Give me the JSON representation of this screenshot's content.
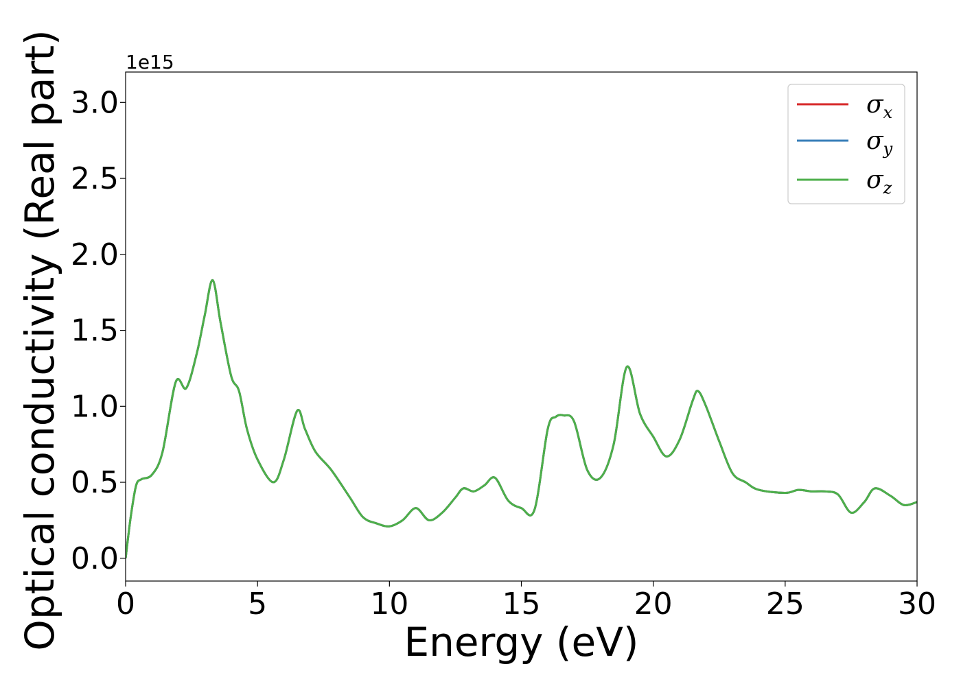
{
  "chart_data": {
    "type": "line",
    "xlabel": "Energy (eV)",
    "ylabel": "Optical conductivity (Real part)",
    "y_offset_label": "1e15",
    "y_scale": 1000000000000000.0,
    "xlim": [
      0,
      30
    ],
    "ylim": [
      -0.15,
      3.2
    ],
    "x_ticks": [
      0,
      5,
      10,
      15,
      20,
      25,
      30
    ],
    "y_ticks": [
      0.0,
      0.5,
      1.0,
      1.5,
      2.0,
      2.5,
      3.0
    ],
    "x_tick_labels": [
      "0",
      "5",
      "10",
      "15",
      "20",
      "25",
      "30"
    ],
    "y_tick_labels": [
      "0.0",
      "0.5",
      "1.0",
      "1.5",
      "2.0",
      "2.5",
      "3.0"
    ],
    "grid": false,
    "legend_position": "top-right",
    "x": [
      0.0,
      0.2,
      0.4,
      0.6,
      1.0,
      1.4,
      1.9,
      2.3,
      2.7,
      3.0,
      3.3,
      3.6,
      4.0,
      4.3,
      4.6,
      5.0,
      5.6,
      6.0,
      6.5,
      6.8,
      7.2,
      7.8,
      8.5,
      9.0,
      9.5,
      10.0,
      10.5,
      11.0,
      11.5,
      12.0,
      12.5,
      12.8,
      13.2,
      13.6,
      14.0,
      14.5,
      15.0,
      15.5,
      16.0,
      16.3,
      16.6,
      17.0,
      17.5,
      18.0,
      18.5,
      19.0,
      19.5,
      20.0,
      20.5,
      21.0,
      21.5,
      21.7,
      22.0,
      22.5,
      23.0,
      23.5,
      24.0,
      25.0,
      25.5,
      26.0,
      26.5,
      27.0,
      27.5,
      28.0,
      28.4,
      29.0,
      29.5,
      30.0
    ],
    "series": [
      {
        "name": "σx",
        "color": "#d62728",
        "values": [
          0.0,
          0.28,
          0.48,
          0.52,
          0.55,
          0.7,
          1.16,
          1.12,
          1.35,
          1.6,
          1.83,
          1.55,
          1.2,
          1.1,
          0.85,
          0.65,
          0.5,
          0.65,
          0.97,
          0.85,
          0.7,
          0.58,
          0.4,
          0.27,
          0.23,
          0.21,
          0.25,
          0.33,
          0.25,
          0.3,
          0.4,
          0.46,
          0.44,
          0.48,
          0.53,
          0.38,
          0.33,
          0.32,
          0.85,
          0.93,
          0.94,
          0.9,
          0.58,
          0.53,
          0.75,
          1.26,
          0.95,
          0.8,
          0.67,
          0.78,
          1.04,
          1.1,
          1.0,
          0.77,
          0.56,
          0.5,
          0.45,
          0.43,
          0.45,
          0.44,
          0.44,
          0.42,
          0.3,
          0.37,
          0.46,
          0.41,
          0.35,
          0.37
        ]
      },
      {
        "name": "σy",
        "color": "#377eb8",
        "values": [
          0.0,
          0.28,
          0.48,
          0.52,
          0.55,
          0.7,
          1.16,
          1.12,
          1.35,
          1.6,
          1.83,
          1.55,
          1.2,
          1.1,
          0.85,
          0.65,
          0.5,
          0.65,
          0.97,
          0.85,
          0.7,
          0.58,
          0.4,
          0.27,
          0.23,
          0.21,
          0.25,
          0.33,
          0.25,
          0.3,
          0.4,
          0.46,
          0.44,
          0.48,
          0.53,
          0.38,
          0.33,
          0.32,
          0.85,
          0.93,
          0.94,
          0.9,
          0.58,
          0.53,
          0.75,
          1.26,
          0.95,
          0.8,
          0.67,
          0.78,
          1.04,
          1.1,
          1.0,
          0.77,
          0.56,
          0.5,
          0.45,
          0.43,
          0.45,
          0.44,
          0.44,
          0.42,
          0.3,
          0.37,
          0.46,
          0.41,
          0.35,
          0.37
        ]
      },
      {
        "name": "σz",
        "color": "#4daf4a",
        "values": [
          0.0,
          0.28,
          0.48,
          0.52,
          0.55,
          0.7,
          1.16,
          1.12,
          1.35,
          1.6,
          1.83,
          1.55,
          1.2,
          1.1,
          0.85,
          0.65,
          0.5,
          0.65,
          0.97,
          0.85,
          0.7,
          0.58,
          0.4,
          0.27,
          0.23,
          0.21,
          0.25,
          0.33,
          0.25,
          0.3,
          0.4,
          0.46,
          0.44,
          0.48,
          0.53,
          0.38,
          0.33,
          0.32,
          0.85,
          0.93,
          0.94,
          0.9,
          0.58,
          0.53,
          0.75,
          1.26,
          0.95,
          0.8,
          0.67,
          0.78,
          1.04,
          1.1,
          1.0,
          0.77,
          0.56,
          0.5,
          0.45,
          0.43,
          0.45,
          0.44,
          0.44,
          0.42,
          0.3,
          0.37,
          0.46,
          0.41,
          0.35,
          0.37
        ]
      }
    ],
    "legend": [
      {
        "symbol": "σ",
        "sub": "x"
      },
      {
        "symbol": "σ",
        "sub": "y"
      },
      {
        "symbol": "σ",
        "sub": "z"
      }
    ]
  }
}
